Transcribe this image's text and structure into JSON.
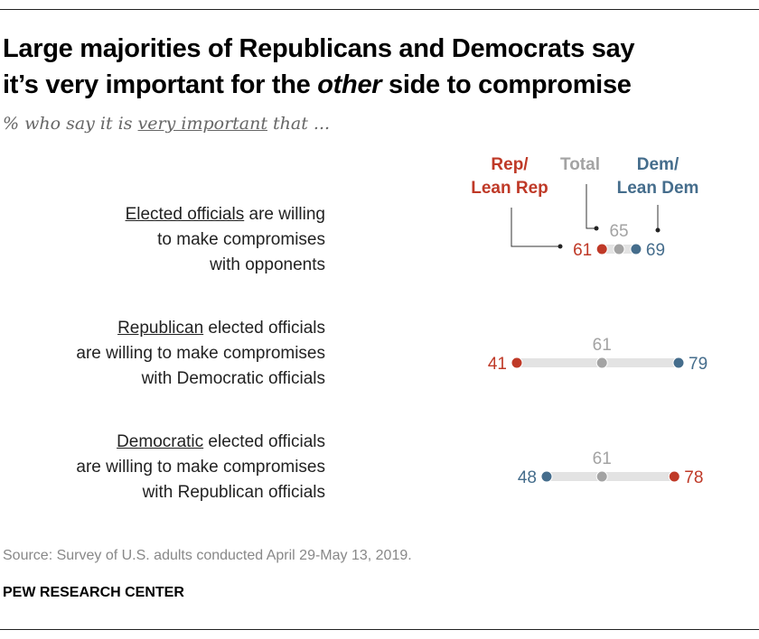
{
  "header": {
    "title_line1": "Large majorities of Republicans and Democrats say",
    "title_line2_pre": "it’s very important for the ",
    "title_line2_em": "other",
    "title_line2_post": " side to compromise",
    "subtitle_pre": "% who say it is ",
    "subtitle_underline": "very important",
    "subtitle_post": " that ..."
  },
  "chart_data": {
    "type": "dot",
    "legend": [
      {
        "key": "rep",
        "lines": [
          "Rep/",
          "Lean Rep"
        ],
        "color": "#bf3927"
      },
      {
        "key": "total",
        "lines": [
          "Total"
        ],
        "color": "#a3a3a3"
      },
      {
        "key": "dem",
        "lines": [
          "Dem/",
          "Lean Dem"
        ],
        "color": "#456d8c"
      }
    ],
    "rows": [
      {
        "underlined": "Elected officials",
        "lines": [
          " are willing",
          "to make compromises",
          "with opponents"
        ],
        "rep": 61,
        "total": 65,
        "dem": 69
      },
      {
        "underlined": "Republican",
        "lines": [
          " elected officials",
          "are willing to make compromises",
          "with Democratic officials"
        ],
        "rep": 41,
        "total": 61,
        "dem": 79
      },
      {
        "underlined": "Democratic",
        "lines": [
          " elected officials",
          "are willing to make compromises",
          "with Republican officials"
        ],
        "rep": 78,
        "total": 61,
        "dem": 48
      }
    ]
  },
  "footer": {
    "source": "Source: Survey of U.S. adults conducted April 29-May 13, 2019.",
    "brand": "PEW RESEARCH CENTER"
  }
}
